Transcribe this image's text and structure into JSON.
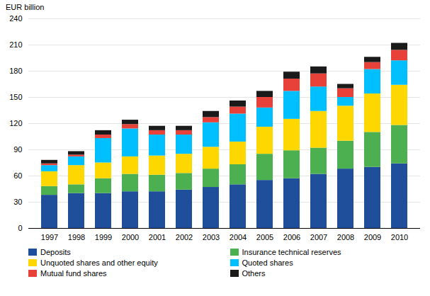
{
  "chart_data": {
    "type": "bar",
    "stacked": true,
    "ylabel": "EUR billion",
    "categories": [
      "1997",
      "1998",
      "1999",
      "2000",
      "2001",
      "2002",
      "2003",
      "2004",
      "2005",
      "2006",
      "2007",
      "2008",
      "2009",
      "2010"
    ],
    "series": [
      {
        "name": "Deposits",
        "color": "#1F4E9B",
        "values": [
          38,
          40,
          40,
          42,
          42,
          44,
          47,
          50,
          55,
          57,
          62,
          68,
          70,
          74
        ]
      },
      {
        "name": "Insurance technical reserves",
        "color": "#4CAF50",
        "values": [
          10,
          10,
          17,
          20,
          19,
          19,
          21,
          23,
          30,
          32,
          30,
          32,
          40,
          44
        ]
      },
      {
        "name": "Unquoted shares and other equity",
        "color": "#FFD700",
        "values": [
          17,
          22,
          18,
          20,
          22,
          22,
          25,
          26,
          31,
          36,
          42,
          40,
          44,
          46
        ]
      },
      {
        "name": "Quoted shares",
        "color": "#00BFFF",
        "values": [
          7,
          10,
          28,
          32,
          24,
          22,
          28,
          32,
          22,
          32,
          28,
          10,
          28,
          28
        ]
      },
      {
        "name": "Mutual fund shares",
        "color": "#E8413A",
        "values": [
          2,
          2,
          4,
          5,
          5,
          5,
          6,
          8,
          12,
          14,
          15,
          10,
          8,
          12
        ]
      },
      {
        "name": "Others",
        "color": "#1A1A1A",
        "values": [
          4,
          4,
          5,
          5,
          5,
          5,
          7,
          7,
          7,
          8,
          8,
          5,
          6,
          8
        ]
      }
    ],
    "ylim": [
      0,
      240
    ],
    "yticks": [
      0,
      30,
      60,
      90,
      120,
      150,
      180,
      210,
      240
    ],
    "grid": true,
    "legend": "bottom"
  }
}
